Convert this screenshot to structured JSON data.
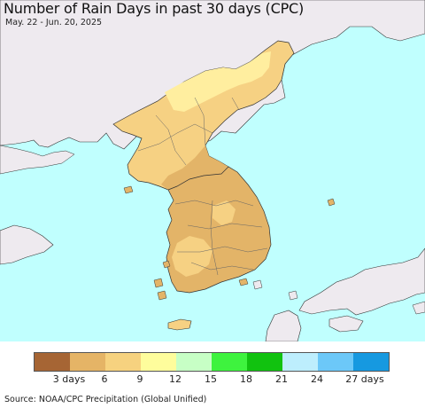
{
  "title": "Number of Rain Days in past 30 days (CPC)",
  "subtitle": "May. 22 - Jun. 20, 2025",
  "source": "Source: NOAA/CPC Precipitation (Global Unified)",
  "colors": {
    "ocean": "#c0fffe",
    "foreign_land": "#eeeaef",
    "c3_6": "#e3b468",
    "c6_9": "#f6d183",
    "c9_12": "#ffee9f",
    "border": "#555555"
  },
  "legend": {
    "colors": [
      "#a66534",
      "#e5b466",
      "#f6d27f",
      "#fefd9c",
      "#c7ffc5",
      "#3ef33e",
      "#11c20f",
      "#bdeefd",
      "#6cc8f8",
      "#1699e0"
    ],
    "ticks": [
      "3 days",
      "6",
      "9",
      "12",
      "15",
      "18",
      "21",
      "24",
      "27 days"
    ]
  }
}
